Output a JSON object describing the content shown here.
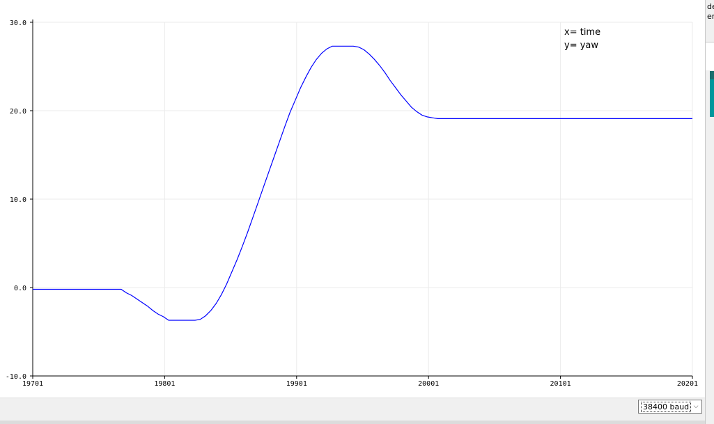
{
  "chart_data": {
    "type": "line",
    "title": "",
    "xlabel": "",
    "ylabel": "",
    "xlim": [
      19701,
      20201
    ],
    "ylim": [
      -10,
      30
    ],
    "grid": true,
    "x_ticks": [
      "19701",
      "19801",
      "19901",
      "20001",
      "20101",
      "20201"
    ],
    "y_ticks": [
      "30.0",
      "20.0",
      "10.0",
      "0.0",
      "-10.0"
    ],
    "annotations": [
      "x= time",
      "y= yaw"
    ],
    "line_color": "#0000ff",
    "series": [
      {
        "x": [
          19701,
          19768,
          19772,
          19776,
          19780,
          19784,
          19788,
          19792,
          19796,
          19800,
          19804,
          19808,
          19812,
          19816,
          19820,
          19824,
          19828,
          19832,
          19836,
          19840,
          19844,
          19848,
          19852,
          19856,
          19860,
          19864,
          19868,
          19872,
          19876,
          19880,
          19884,
          19888,
          19892,
          19896,
          19900,
          19904,
          19908,
          19912,
          19916,
          19920,
          19924,
          19928,
          19932,
          19936,
          19940,
          19944,
          19948,
          19952,
          19956,
          19960,
          19964,
          19968,
          19972,
          19976,
          19980,
          19984,
          19988,
          19992,
          19996,
          20000,
          20004,
          20008,
          20012,
          20016,
          20020,
          20024,
          20028,
          20032,
          20036,
          20040,
          20044,
          20048,
          20052,
          20201
        ],
        "y": [
          -0.2,
          -0.2,
          -0.6,
          -0.9,
          -1.3,
          -1.7,
          -2.1,
          -2.6,
          -3.0,
          -3.3,
          -3.7,
          -3.7,
          -3.7,
          -3.7,
          -3.7,
          -3.7,
          -3.6,
          -3.2,
          -2.6,
          -1.8,
          -0.8,
          0.4,
          1.8,
          3.2,
          4.7,
          6.3,
          8.0,
          9.7,
          11.4,
          13.1,
          14.8,
          16.5,
          18.2,
          19.8,
          21.2,
          22.6,
          23.8,
          24.9,
          25.8,
          26.5,
          27.0,
          27.3,
          27.3,
          27.3,
          27.3,
          27.3,
          27.2,
          26.9,
          26.4,
          25.8,
          25.1,
          24.3,
          23.4,
          22.6,
          21.8,
          21.1,
          20.4,
          19.9,
          19.5,
          19.3,
          19.2,
          19.1,
          19.1,
          19.1,
          19.1,
          19.1,
          19.1,
          19.1,
          19.1,
          19.1,
          19.1,
          19.1,
          19.1,
          19.1
        ]
      }
    ]
  },
  "controls": {
    "baud_label": "38400 baud",
    "dropdown_icon": "chevron-down-icon",
    "right_edge_text": [
      "de",
      "er"
    ]
  },
  "colors": {
    "plot_line": "#0000ff",
    "grid": "#ebebeb",
    "panel": "#f0f0f0",
    "accent_dark": "#1a6e6e",
    "accent": "#00979c"
  }
}
